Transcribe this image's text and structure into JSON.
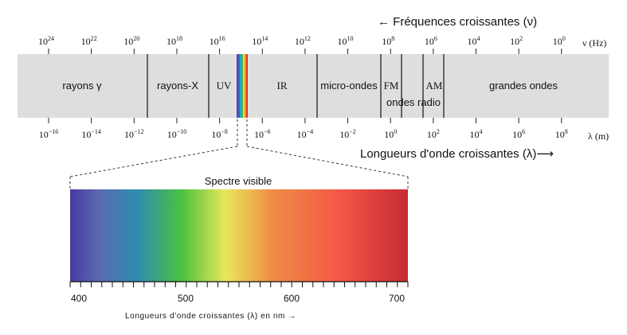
{
  "freq_title": "← Fréquences croissantes (ν)",
  "wave_title": "Longueurs d'onde croissantes (λ)⟶",
  "freq_unit": "ν (Hz)",
  "wave_unit": "λ (m)",
  "freq_ticks": [
    {
      "base": "10",
      "exp": "24"
    },
    {
      "base": "10",
      "exp": "22"
    },
    {
      "base": "10",
      "exp": "20"
    },
    {
      "base": "10",
      "exp": "18"
    },
    {
      "base": "10",
      "exp": "16"
    },
    {
      "base": "10",
      "exp": "14"
    },
    {
      "base": "10",
      "exp": "12"
    },
    {
      "base": "10",
      "exp": "10"
    },
    {
      "base": "10",
      "exp": "8"
    },
    {
      "base": "10",
      "exp": "6"
    },
    {
      "base": "10",
      "exp": "4"
    },
    {
      "base": "10",
      "exp": "2"
    },
    {
      "base": "10",
      "exp": "0"
    }
  ],
  "wave_ticks": [
    {
      "base": "10",
      "exp": "−16"
    },
    {
      "base": "10",
      "exp": "−14"
    },
    {
      "base": "10",
      "exp": "−12"
    },
    {
      "base": "10",
      "exp": "−10"
    },
    {
      "base": "10",
      "exp": "−8"
    },
    {
      "base": "10",
      "exp": "−6"
    },
    {
      "base": "10",
      "exp": "−4"
    },
    {
      "base": "10",
      "exp": "−2"
    },
    {
      "base": "10",
      "exp": "0"
    },
    {
      "base": "10",
      "exp": "2"
    },
    {
      "base": "10",
      "exp": "4"
    },
    {
      "base": "10",
      "exp": "6"
    },
    {
      "base": "10",
      "exp": "8"
    }
  ],
  "regions": {
    "gamma": "rayons γ",
    "xray": "rayons-X",
    "uv": "UV",
    "ir": "IR",
    "micro": "micro-ondes",
    "fm": "FM",
    "ondes_radio": "ondes radio",
    "am": "AM",
    "grandes": "grandes ondes"
  },
  "visible": {
    "title": "Spectre visible",
    "axis_ticks": [
      "400",
      "500",
      "600",
      "700"
    ],
    "axis_label": "Longueurs d'onde croissantes (λ) en nm →"
  },
  "colors": {
    "band": "#dedede",
    "violet": "#4b3fa0",
    "blue": "#2e8db0",
    "green": "#4cc13f",
    "yellow": "#ece85a",
    "orange": "#ef8c45",
    "red": "#c62c33"
  }
}
